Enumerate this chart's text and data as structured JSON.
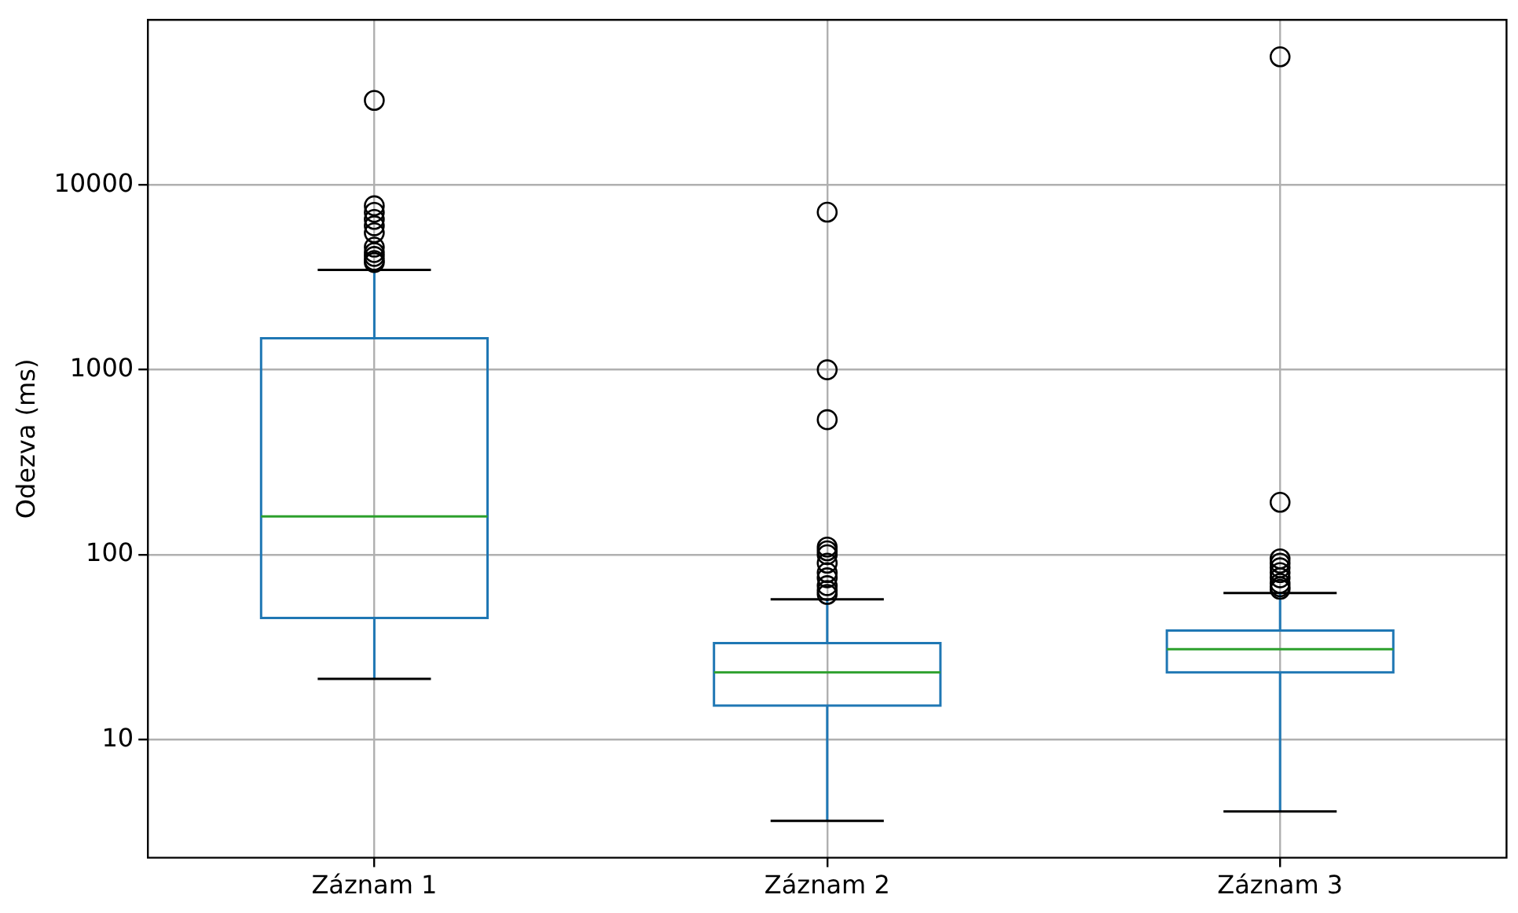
{
  "chart_data": {
    "type": "box",
    "ylabel": "Odezva (ms)",
    "categories": [
      "Záznam 1",
      "Záznam 2",
      "Záznam 3"
    ],
    "log": "y",
    "ylim": [
      2.3,
      78000
    ],
    "yticks": [
      10,
      100,
      1000,
      10000
    ],
    "grid": true,
    "color": "#1f77b4",
    "boxes": [
      {
        "low": 21.3,
        "q1": 45.5,
        "median": 161,
        "q3": 1480,
        "high": 3470,
        "outliers": [
          28600,
          7700,
          7100,
          6500,
          6000,
          5500,
          4600,
          4300,
          4100,
          3900,
          3800
        ]
      },
      {
        "low": 3.64,
        "q1": 15.3,
        "median": 23.1,
        "q3": 33.3,
        "high": 57.4,
        "outliers": [
          7110,
          1000,
          537,
          110,
          105,
          100,
          90,
          80,
          75,
          68,
          64,
          61
        ]
      },
      {
        "low": 4.09,
        "q1": 23.1,
        "median": 30.8,
        "q3": 38.9,
        "high": 62,
        "outliers": [
          49200,
          192,
          95,
          90,
          85,
          80,
          75,
          70,
          67,
          65
        ]
      }
    ]
  }
}
